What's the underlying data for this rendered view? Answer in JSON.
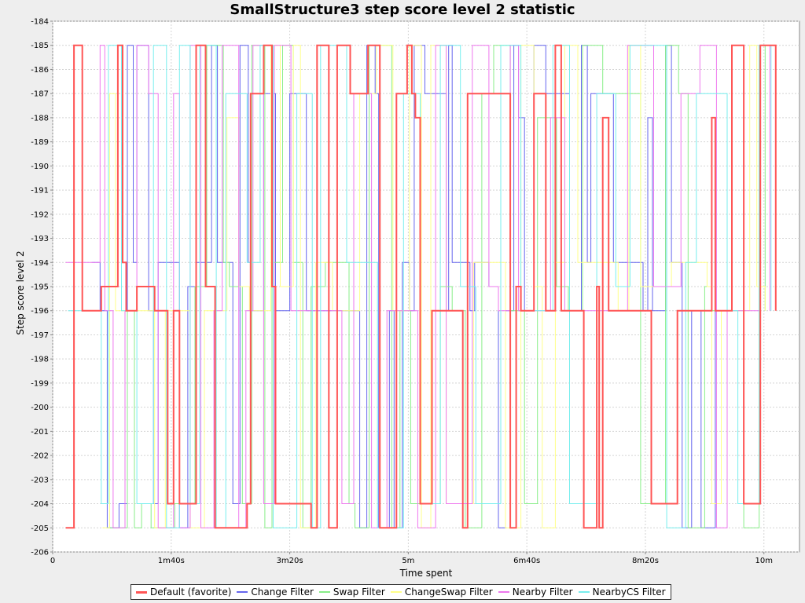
{
  "chart_data": {
    "type": "line",
    "step": true,
    "title": "SmallStructure3 step score level 2 statistic",
    "xlabel": "Time spent",
    "ylabel": "Step score level 2",
    "xlim": [
      0,
      630
    ],
    "ylim": [
      -206,
      -184
    ],
    "x_ticks": [
      {
        "value": 0,
        "label": "0"
      },
      {
        "value": 100,
        "label": "1m40s"
      },
      {
        "value": 200,
        "label": "3m20s"
      },
      {
        "value": 300,
        "label": "5m"
      },
      {
        "value": 400,
        "label": "6m40s"
      },
      {
        "value": 500,
        "label": "8m20s"
      },
      {
        "value": 600,
        "label": "10m"
      }
    ],
    "y_ticks": [
      -184,
      -185,
      -186,
      -187,
      -188,
      -189,
      -190,
      -191,
      -192,
      -193,
      -194,
      -195,
      -196,
      -197,
      -198,
      -199,
      -200,
      -201,
      -202,
      -203,
      -204,
      -205,
      -206
    ],
    "grid": true,
    "legend_position": "bottom",
    "series": [
      {
        "name": "Default (favorite)",
        "color": "#ff5555",
        "width": 2,
        "points": [
          [
            11,
            -205
          ],
          [
            18,
            -185
          ],
          [
            25,
            -196
          ],
          [
            41,
            -195
          ],
          [
            55,
            -185
          ],
          [
            59,
            -194
          ],
          [
            62,
            -196
          ],
          [
            71,
            -195
          ],
          [
            86,
            -196
          ],
          [
            97,
            -204
          ],
          [
            102,
            -196
          ],
          [
            107,
            -204
          ],
          [
            121,
            -185
          ],
          [
            129,
            -195
          ],
          [
            137,
            -205
          ],
          [
            164,
            -204
          ],
          [
            167,
            -187
          ],
          [
            178,
            -185
          ],
          [
            185,
            -195
          ],
          [
            188,
            -204
          ],
          [
            218,
            -205
          ],
          [
            223,
            -185
          ],
          [
            233,
            -205
          ],
          [
            240,
            -185
          ],
          [
            251,
            -187
          ],
          [
            266,
            -185
          ],
          [
            276,
            -205
          ],
          [
            290,
            -187
          ],
          [
            299,
            -185
          ],
          [
            303,
            -187
          ],
          [
            306,
            -188
          ],
          [
            310,
            -204
          ],
          [
            320,
            -196
          ],
          [
            346,
            -205
          ],
          [
            350,
            -187
          ],
          [
            386,
            -205
          ],
          [
            391,
            -195
          ],
          [
            395,
            -196
          ],
          [
            406,
            -187
          ],
          [
            416,
            -196
          ],
          [
            424,
            -185
          ],
          [
            429,
            -196
          ],
          [
            448,
            -205
          ],
          [
            459,
            -195
          ],
          [
            461,
            -205
          ],
          [
            464,
            -188
          ],
          [
            469,
            -196
          ],
          [
            505,
            -204
          ],
          [
            527,
            -196
          ],
          [
            556,
            -188
          ],
          [
            559,
            -196
          ],
          [
            573,
            -185
          ],
          [
            583,
            -204
          ],
          [
            597,
            -185
          ],
          [
            610,
            -196
          ]
        ]
      },
      {
        "name": "Change Filter",
        "color": "#6666ee",
        "width": 1,
        "points": [
          [
            33,
            -194
          ],
          [
            40,
            -196
          ],
          [
            46,
            -205
          ],
          [
            56,
            -204
          ],
          [
            63,
            -185
          ],
          [
            68,
            -194
          ],
          [
            71,
            -185
          ],
          [
            81,
            -196
          ],
          [
            85,
            -204
          ],
          [
            89,
            -194
          ],
          [
            107,
            -205
          ],
          [
            114,
            -195
          ],
          [
            121,
            -194
          ],
          [
            134,
            -185
          ],
          [
            139,
            -194
          ],
          [
            152,
            -204
          ],
          [
            158,
            -185
          ],
          [
            165,
            -194
          ],
          [
            167,
            -196
          ],
          [
            178,
            -187
          ],
          [
            188,
            -196
          ],
          [
            200,
            -187
          ],
          [
            214,
            -196
          ],
          [
            259,
            -205
          ],
          [
            265,
            -185
          ],
          [
            272,
            -187
          ],
          [
            275,
            -205
          ],
          [
            284,
            -196
          ],
          [
            288,
            -205
          ],
          [
            295,
            -194
          ],
          [
            301,
            -196
          ],
          [
            305,
            -185
          ],
          [
            314,
            -187
          ],
          [
            332,
            -196
          ],
          [
            334,
            -185
          ],
          [
            337,
            -194
          ],
          [
            352,
            -196
          ],
          [
            356,
            -194
          ],
          [
            368,
            -195
          ],
          [
            376,
            -205
          ],
          [
            382,
            -196
          ],
          [
            389,
            -185
          ],
          [
            393,
            -188
          ],
          [
            398,
            -196
          ],
          [
            406,
            -185
          ],
          [
            416,
            -187
          ],
          [
            436,
            -196
          ],
          [
            446,
            -185
          ],
          [
            451,
            -194
          ],
          [
            454,
            -187
          ],
          [
            473,
            -194
          ],
          [
            498,
            -196
          ],
          [
            502,
            -188
          ],
          [
            506,
            -196
          ],
          [
            517,
            -185
          ],
          [
            522,
            -194
          ],
          [
            531,
            -205
          ],
          [
            539,
            -196
          ],
          [
            547,
            -205
          ],
          [
            559,
            -196
          ]
        ]
      },
      {
        "name": "Swap Filter",
        "color": "#88ee88",
        "width": 1,
        "points": [
          [
            46,
            -205
          ],
          [
            63,
            -196
          ],
          [
            69,
            -205
          ],
          [
            75,
            -204
          ],
          [
            83,
            -205
          ],
          [
            103,
            -204
          ],
          [
            120,
            -195
          ],
          [
            130,
            -185
          ],
          [
            144,
            -194
          ],
          [
            149,
            -195
          ],
          [
            160,
            -204
          ],
          [
            168,
            -185
          ],
          [
            179,
            -205
          ],
          [
            185,
            -194
          ],
          [
            194,
            -185
          ],
          [
            203,
            -194
          ],
          [
            211,
            -205
          ],
          [
            218,
            -195
          ],
          [
            230,
            -194
          ],
          [
            250,
            -204
          ],
          [
            255,
            -205
          ],
          [
            267,
            -185
          ],
          [
            286,
            -205
          ],
          [
            293,
            -196
          ],
          [
            302,
            -204
          ],
          [
            327,
            -195
          ],
          [
            337,
            -196
          ],
          [
            348,
            -205
          ],
          [
            362,
            -187
          ],
          [
            372,
            -185
          ],
          [
            386,
            -196
          ],
          [
            398,
            -204
          ],
          [
            409,
            -188
          ],
          [
            425,
            -195
          ],
          [
            435,
            -196
          ],
          [
            447,
            -185
          ],
          [
            464,
            -187
          ],
          [
            496,
            -204
          ],
          [
            517,
            -185
          ],
          [
            528,
            -187
          ],
          [
            536,
            -205
          ],
          [
            550,
            -195
          ],
          [
            556,
            -196
          ],
          [
            583,
            -205
          ],
          [
            596,
            -185
          ],
          [
            601,
            -196
          ]
        ]
      },
      {
        "name": "ChangeSwap Filter",
        "color": "#ffff88",
        "width": 1,
        "points": [
          [
            42,
            -205
          ],
          [
            48,
            -187
          ],
          [
            53,
            -196
          ],
          [
            86,
            -205
          ],
          [
            95,
            -196
          ],
          [
            116,
            -205
          ],
          [
            128,
            -196
          ],
          [
            147,
            -188
          ],
          [
            157,
            -195
          ],
          [
            166,
            -196
          ],
          [
            184,
            -185
          ],
          [
            192,
            -195
          ],
          [
            203,
            -185
          ],
          [
            209,
            -205
          ],
          [
            222,
            -194
          ],
          [
            236,
            -196
          ],
          [
            259,
            -187
          ],
          [
            273,
            -185
          ],
          [
            287,
            -196
          ],
          [
            301,
            -185
          ],
          [
            311,
            -205
          ],
          [
            319,
            -185
          ],
          [
            332,
            -204
          ],
          [
            355,
            -194
          ],
          [
            382,
            -205
          ],
          [
            395,
            -185
          ],
          [
            406,
            -195
          ],
          [
            413,
            -205
          ],
          [
            424,
            -194
          ],
          [
            432,
            -185
          ],
          [
            443,
            -194
          ],
          [
            477,
            -196
          ],
          [
            486,
            -185
          ],
          [
            496,
            -195
          ],
          [
            522,
            -194
          ],
          [
            552,
            -195
          ],
          [
            556,
            -204
          ],
          [
            564,
            -196
          ],
          [
            588,
            -185
          ],
          [
            594,
            -195
          ],
          [
            601,
            -196
          ]
        ]
      },
      {
        "name": "Nearby Filter",
        "color": "#ee77ee",
        "width": 1,
        "points": [
          [
            11,
            -194
          ],
          [
            40,
            -185
          ],
          [
            44,
            -196
          ],
          [
            51,
            -205
          ],
          [
            61,
            -196
          ],
          [
            71,
            -185
          ],
          [
            81,
            -187
          ],
          [
            89,
            -205
          ],
          [
            102,
            -187
          ],
          [
            107,
            -205
          ],
          [
            116,
            -185
          ],
          [
            125,
            -205
          ],
          [
            136,
            -196
          ],
          [
            143,
            -185
          ],
          [
            157,
            -205
          ],
          [
            163,
            -196
          ],
          [
            169,
            -185
          ],
          [
            178,
            -204
          ],
          [
            187,
            -185
          ],
          [
            201,
            -196
          ],
          [
            244,
            -204
          ],
          [
            254,
            -187
          ],
          [
            269,
            -205
          ],
          [
            282,
            -196
          ],
          [
            308,
            -205
          ],
          [
            323,
            -185
          ],
          [
            332,
            -204
          ],
          [
            354,
            -185
          ],
          [
            368,
            -195
          ],
          [
            376,
            -196
          ],
          [
            386,
            -185
          ],
          [
            393,
            -196
          ],
          [
            420,
            -188
          ],
          [
            432,
            -196
          ],
          [
            485,
            -185
          ],
          [
            507,
            -195
          ],
          [
            530,
            -187
          ],
          [
            546,
            -185
          ],
          [
            560,
            -205
          ],
          [
            569,
            -196
          ],
          [
            597,
            -185
          ],
          [
            605,
            -196
          ]
        ]
      },
      {
        "name": "NearbyCS Filter",
        "color": "#77eeee",
        "width": 1,
        "points": [
          [
            13,
            -196
          ],
          [
            41,
            -204
          ],
          [
            47,
            -185
          ],
          [
            58,
            -196
          ],
          [
            71,
            -204
          ],
          [
            85,
            -185
          ],
          [
            96,
            -205
          ],
          [
            107,
            -185
          ],
          [
            116,
            -204
          ],
          [
            124,
            -185
          ],
          [
            138,
            -205
          ],
          [
            146,
            -187
          ],
          [
            164,
            -194
          ],
          [
            175,
            -185
          ],
          [
            186,
            -205
          ],
          [
            206,
            -187
          ],
          [
            219,
            -205
          ],
          [
            226,
            -185
          ],
          [
            248,
            -194
          ],
          [
            274,
            -205
          ],
          [
            296,
            -187
          ],
          [
            310,
            -204
          ],
          [
            327,
            -185
          ],
          [
            344,
            -195
          ],
          [
            357,
            -204
          ],
          [
            378,
            -185
          ],
          [
            395,
            -196
          ],
          [
            422,
            -185
          ],
          [
            436,
            -204
          ],
          [
            459,
            -187
          ],
          [
            475,
            -195
          ],
          [
            487,
            -185
          ],
          [
            518,
            -205
          ],
          [
            534,
            -194
          ],
          [
            543,
            -187
          ],
          [
            569,
            -196
          ],
          [
            578,
            -204
          ],
          [
            596,
            -185
          ],
          [
            606,
            -196
          ]
        ]
      }
    ]
  }
}
